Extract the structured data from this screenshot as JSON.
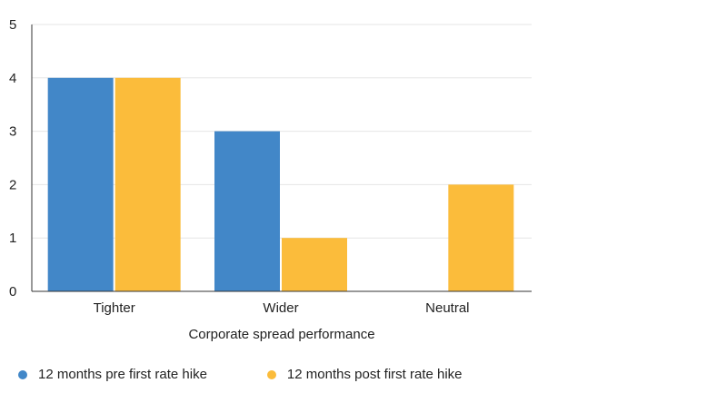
{
  "chart_data": {
    "type": "bar",
    "categories": [
      "Tighter",
      "Wider",
      "Neutral"
    ],
    "series": [
      {
        "name": "12 months pre first rate hike",
        "values": [
          4,
          3,
          0
        ],
        "color": "#4287c8"
      },
      {
        "name": "12 months post first rate hike",
        "values": [
          4,
          1,
          2
        ],
        "color": "#fbbc3b"
      }
    ],
    "xlabel": "Corporate spread performance",
    "ylabel": "",
    "ylim": [
      0,
      5
    ],
    "yticks": [
      0,
      1,
      2,
      3,
      4,
      5
    ],
    "grid": true,
    "legend_position": "bottom-left"
  }
}
